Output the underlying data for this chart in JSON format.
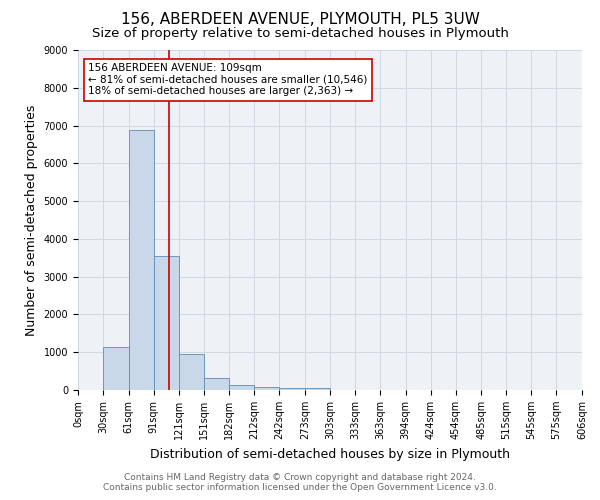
{
  "title": "156, ABERDEEN AVENUE, PLYMOUTH, PL5 3UW",
  "subtitle": "Size of property relative to semi-detached houses in Plymouth",
  "xlabel": "Distribution of semi-detached houses by size in Plymouth",
  "ylabel": "Number of semi-detached properties",
  "footer1": "Contains HM Land Registry data © Crown copyright and database right 2024.",
  "footer2": "Contains public sector information licensed under the Open Government Licence v3.0.",
  "bin_edges": [
    0,
    30,
    61,
    91,
    121,
    151,
    182,
    212,
    242,
    273,
    303,
    333,
    363,
    394,
    424,
    454,
    485,
    515,
    545,
    575,
    606
  ],
  "bin_counts": [
    0,
    1130,
    6870,
    3550,
    960,
    320,
    130,
    80,
    60,
    40,
    0,
    0,
    0,
    0,
    0,
    0,
    0,
    0,
    0,
    0
  ],
  "property_size": 109,
  "bar_color": "#c8d8e8",
  "bar_edge_color": "#5b8db8",
  "red_line_color": "#cc0000",
  "annotation_text_line1": "156 ABERDEEN AVENUE: 109sqm",
  "annotation_text_line2": "← 81% of semi-detached houses are smaller (10,546)",
  "annotation_text_line3": "18% of semi-detached houses are larger (2,363) →",
  "ylim": [
    0,
    9000
  ],
  "xlim": [
    0,
    606
  ],
  "yticks": [
    0,
    1000,
    2000,
    3000,
    4000,
    5000,
    6000,
    7000,
    8000,
    9000
  ],
  "grid_color": "#d0d8e4",
  "bg_color": "#eef2f7",
  "title_fontsize": 11,
  "subtitle_fontsize": 9.5,
  "axis_label_fontsize": 9,
  "tick_fontsize": 7,
  "footer_fontsize": 6.5,
  "ann_fontsize": 7.5
}
